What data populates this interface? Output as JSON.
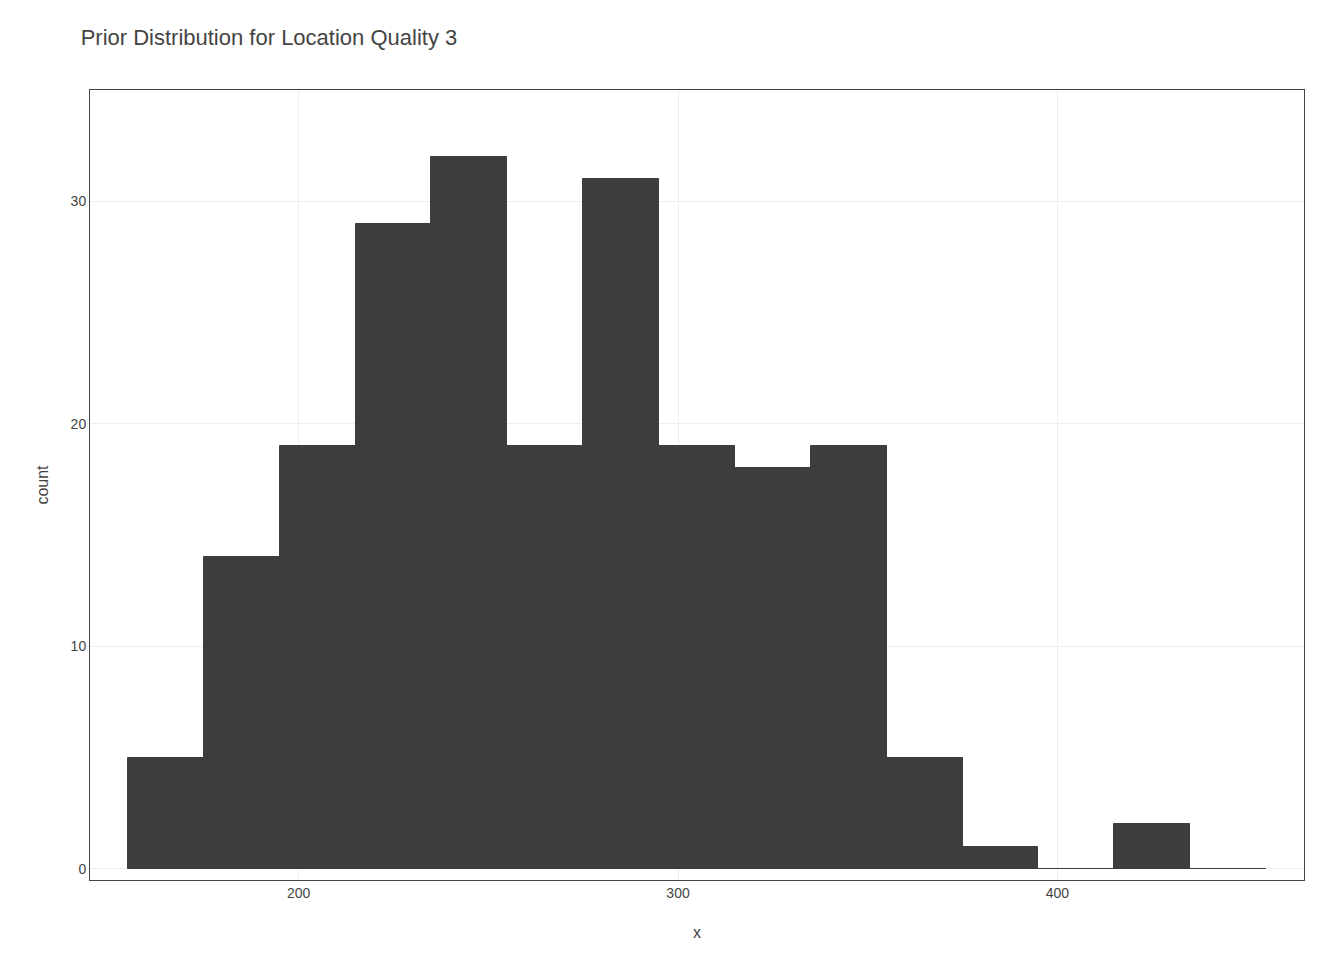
{
  "chart_data": {
    "type": "histogram",
    "title": "Prior Distribution for Location Quality 3",
    "xlabel": "x",
    "ylabel": "count",
    "bins": [
      155,
      175,
      195,
      215,
      235,
      255,
      275,
      295,
      315,
      335,
      355,
      375,
      395,
      415,
      435,
      455
    ],
    "values": [
      5,
      14,
      19,
      29,
      32,
      19,
      31,
      19,
      18,
      19,
      5,
      1,
      0,
      2,
      0
    ],
    "color": "#3d3d3d",
    "xlim": [
      145,
      465
    ],
    "xticks": [
      200,
      300,
      400
    ],
    "ylim": [
      -0.5,
      35
    ],
    "yticks": [
      0,
      10,
      20,
      30
    ],
    "grid": true
  }
}
